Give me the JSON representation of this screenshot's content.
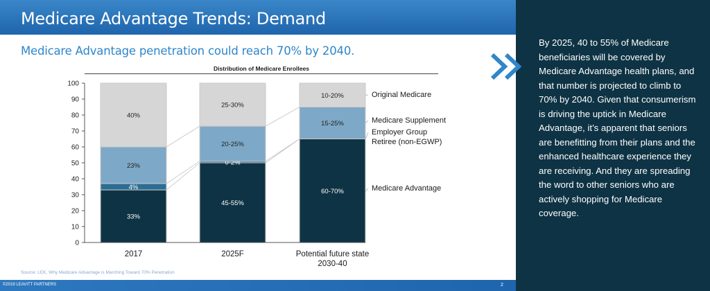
{
  "header": {
    "title": "Medicare Advantage Trends: Demand"
  },
  "subtitle": "Medicare Advantage penetration could reach 70% by 2040.",
  "source": "Source: LEK, Why Medicare Advantage is Marching Toward 70% Penetration",
  "footer": {
    "left": "©2019 LEAVITT PARTNERS",
    "page": "2"
  },
  "panel": {
    "text": "By 2025, 40 to 55% of Medicare beneficiaries will be covered by Medicare Advantage health plans, and that number is projected to climb to 70% by 2040. Given that consumerism is driving the uptick in Medicare Advantage, it’s apparent that seniors are benefitting from their plans and the enhanced healthcare experience they are receiving. And they are spreading the word to other seniors who are actively shopping for Medicare coverage."
  },
  "colors": {
    "title_bar": "#1f65ad",
    "panel_bg": "#0e3344",
    "chevron": "#2f86c9"
  },
  "chart_data": {
    "type": "bar",
    "stacked": true,
    "title": "Distribution of Medicare Enrollees",
    "categories": [
      "2017",
      "2025F",
      "Potential future state 2030-40"
    ],
    "yticks": [
      "0",
      "10",
      "20",
      "30",
      "40",
      "50",
      "60",
      "70",
      "80",
      "90",
      "100"
    ],
    "ylim": [
      0,
      100
    ],
    "grid": false,
    "series": [
      {
        "name": "Medicare Advantage",
        "color": "#0e3344",
        "values": [
          33,
          50,
          65
        ],
        "labels": [
          "33%",
          "45-55%",
          "60-70%"
        ]
      },
      {
        "name": "Employer Group Retiree (non-EGWP)",
        "color": "#2c6e93",
        "values": [
          4,
          1,
          0
        ],
        "labels": [
          "4%",
          "0-2%",
          ""
        ]
      },
      {
        "name": "Medicare Supplement",
        "color": "#7ea8c7",
        "values": [
          23,
          22,
          20
        ],
        "labels": [
          "23%",
          "20-25%",
          "15-25%"
        ]
      },
      {
        "name": "Original Medicare",
        "color": "#d6d6d6",
        "values": [
          40,
          27,
          15
        ],
        "labels": [
          "40%",
          "25-30%",
          "10-20%"
        ]
      }
    ],
    "legend": [
      {
        "lines": [
          "Original Medicare"
        ]
      },
      {
        "lines": [
          "Medicare Supplement"
        ]
      },
      {
        "lines": [
          "Employer Group",
          "Retiree (non-EGWP)"
        ]
      },
      {
        "lines": [
          "Medicare Advantage"
        ]
      }
    ],
    "category_lines": [
      [
        "2017"
      ],
      [
        "2025F"
      ],
      [
        "Potential future state",
        "2030-40"
      ]
    ],
    "legend_placement": "right"
  }
}
